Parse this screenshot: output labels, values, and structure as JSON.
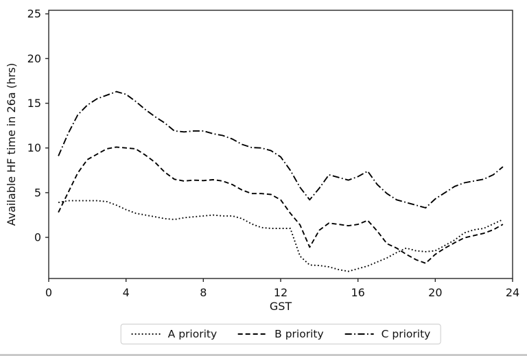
{
  "figure": {
    "background": "#ffffff",
    "line_color": "#000000",
    "text_color": "#111111",
    "spine_color": "#262626",
    "legend_border_color": "#cccccc"
  },
  "chart_data": {
    "type": "line",
    "title": "",
    "xlabel": "GST",
    "ylabel": "Available HF time in 26a (hrs)",
    "xlim": [
      0,
      24
    ],
    "ylim": [
      -4.6,
      25.4
    ],
    "x_ticks": [
      0,
      4,
      8,
      12,
      16,
      20,
      24
    ],
    "y_ticks": [
      0,
      5,
      10,
      15,
      20,
      25
    ],
    "grid": false,
    "legend_position": "bottom-center-outside",
    "x": [
      0.5,
      1,
      1.5,
      2,
      2.5,
      3,
      3.5,
      4,
      4.5,
      5,
      5.5,
      6,
      6.5,
      7,
      7.5,
      8,
      8.5,
      9,
      9.5,
      10,
      10.5,
      11,
      11.5,
      12,
      12.5,
      13,
      13.5,
      14,
      14.5,
      15,
      15.5,
      16,
      16.5,
      17,
      17.5,
      18,
      18.5,
      19,
      19.5,
      20,
      20.5,
      21,
      21.5,
      22,
      22.5,
      23,
      23.5
    ],
    "series": [
      {
        "name": "A priority",
        "linestyle": "dotted",
        "color": "#000000",
        "values": [
          3.9,
          4.1,
          4.1,
          4.1,
          4.1,
          4.0,
          3.6,
          3.1,
          2.7,
          2.5,
          2.3,
          2.1,
          2.0,
          2.2,
          2.3,
          2.4,
          2.5,
          2.4,
          2.4,
          2.1,
          1.5,
          1.1,
          1.0,
          1.0,
          1.0,
          -2.1,
          -3.1,
          -3.15,
          -3.3,
          -3.6,
          -3.8,
          -3.5,
          -3.2,
          -2.75,
          -2.3,
          -1.7,
          -1.2,
          -1.5,
          -1.6,
          -1.5,
          -0.9,
          -0.3,
          0.5,
          0.85,
          1.0,
          1.5,
          2.0
        ]
      },
      {
        "name": "B priority",
        "linestyle": "dashed",
        "color": "#000000",
        "values": [
          2.8,
          5.0,
          7.2,
          8.7,
          9.3,
          9.9,
          10.1,
          10.0,
          9.9,
          9.2,
          8.4,
          7.3,
          6.5,
          6.3,
          6.4,
          6.35,
          6.45,
          6.3,
          5.9,
          5.3,
          4.9,
          4.9,
          4.8,
          4.2,
          2.7,
          1.4,
          -1.1,
          0.8,
          1.6,
          1.45,
          1.3,
          1.45,
          1.9,
          0.7,
          -0.7,
          -1.2,
          -1.9,
          -2.5,
          -2.9,
          -1.9,
          -1.2,
          -0.6,
          -0.05,
          0.2,
          0.45,
          0.85,
          1.45
        ]
      },
      {
        "name": "C priority",
        "linestyle": "dashdot",
        "color": "#000000",
        "values": [
          9.1,
          11.6,
          13.7,
          14.8,
          15.5,
          15.9,
          16.3,
          16.0,
          15.2,
          14.3,
          13.5,
          12.8,
          11.9,
          11.8,
          11.9,
          11.9,
          11.6,
          11.4,
          11.0,
          10.4,
          10.05,
          10.0,
          9.7,
          9.0,
          7.5,
          5.6,
          4.2,
          5.5,
          7.0,
          6.7,
          6.4,
          6.8,
          7.4,
          5.9,
          4.9,
          4.2,
          3.9,
          3.6,
          3.3,
          4.3,
          5.0,
          5.7,
          6.1,
          6.3,
          6.5,
          7.0,
          7.9
        ]
      }
    ]
  }
}
